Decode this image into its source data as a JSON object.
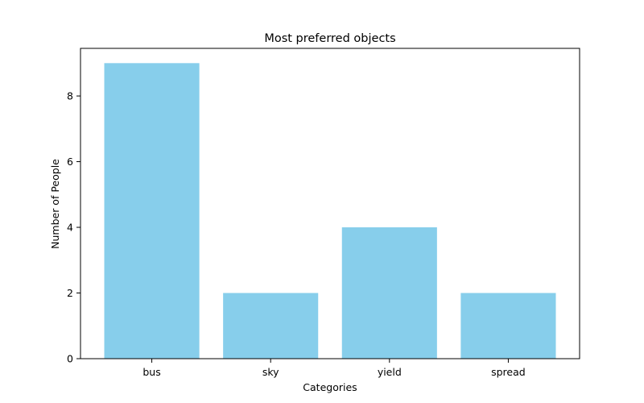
{
  "chart_data": {
    "type": "bar",
    "title": "Most preferred objects",
    "xlabel": "Categories",
    "ylabel": "Number of People",
    "categories": [
      "bus",
      "sky",
      "yield",
      "spread"
    ],
    "values": [
      9,
      2,
      4,
      2
    ],
    "ylim": [
      0,
      9.45
    ],
    "yticks": [
      0,
      2,
      4,
      6,
      8
    ],
    "grid": false,
    "bar_color": "#87ceeb"
  }
}
